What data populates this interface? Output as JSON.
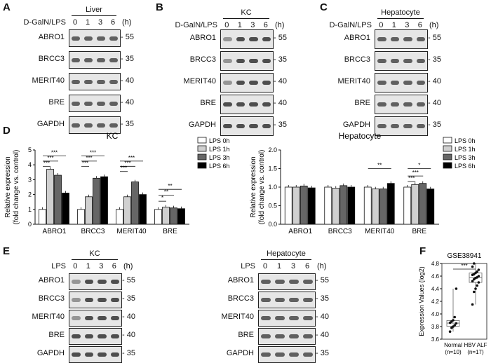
{
  "panel_labels": [
    "A",
    "B",
    "C",
    "D",
    "E",
    "F"
  ],
  "galn_label": "D-GalN/LPS",
  "lps_label": "LPS",
  "timepoints": [
    "0",
    "1",
    "3",
    "6"
  ],
  "hour_unit": "(h)",
  "proteins": [
    "ABRO1",
    "BRCC3",
    "MERIT40",
    "BRE",
    "GAPDH"
  ],
  "mw": [
    "55",
    "35",
    "40",
    "40",
    "35"
  ],
  "blots": {
    "A": {
      "title": "Liver"
    },
    "B": {
      "title": "KC"
    },
    "C": {
      "title": "Hepatocyte"
    },
    "E1": {
      "title": "KC"
    },
    "E2": {
      "title": "Hepatocyte"
    }
  },
  "chart_data": [
    {
      "type": "bar",
      "title": "KC",
      "ylabel": "Relative expression (fold change vs. control)",
      "ylim": [
        0,
        5
      ],
      "yticks": [
        0,
        1,
        2,
        3,
        4,
        5
      ],
      "categories": [
        "ABRO1",
        "BRCC3",
        "MERIT40",
        "BRE"
      ],
      "series": [
        {
          "name": "LPS 0h",
          "values": [
            1.0,
            1.0,
            1.0,
            1.0
          ],
          "color": "#ffffff"
        },
        {
          "name": "LPS 1h",
          "values": [
            3.7,
            1.85,
            1.85,
            1.15
          ],
          "color": "#d0d0d0"
        },
        {
          "name": "LPS 3h",
          "values": [
            3.3,
            3.1,
            2.85,
            1.1
          ],
          "color": "#666666"
        },
        {
          "name": "LPS 6h",
          "values": [
            2.1,
            3.2,
            2.0,
            1.05
          ],
          "color": "#000000"
        }
      ],
      "significance": [
        "***",
        "***",
        "***",
        "***",
        "***",
        "***",
        "***",
        "***",
        "***",
        "*",
        "**",
        "**"
      ]
    },
    {
      "type": "bar",
      "title": "Hepatocyte",
      "ylabel": "Relative expression (fold change vs. control)",
      "ylim": [
        0,
        2.0
      ],
      "yticks": [
        0.0,
        0.5,
        1.0,
        1.5,
        2.0
      ],
      "categories": [
        "ABRO1",
        "BRCC3",
        "MERIT40",
        "BRE"
      ],
      "series": [
        {
          "name": "LPS 0h",
          "values": [
            1.0,
            1.0,
            1.0,
            1.0
          ],
          "color": "#ffffff"
        },
        {
          "name": "LPS 1h",
          "values": [
            1.0,
            0.97,
            0.95,
            1.07
          ],
          "color": "#d0d0d0"
        },
        {
          "name": "LPS 3h",
          "values": [
            1.03,
            1.04,
            0.95,
            1.1
          ],
          "color": "#666666"
        },
        {
          "name": "LPS 6h",
          "values": [
            0.98,
            1.0,
            1.1,
            0.95
          ],
          "color": "#000000"
        }
      ],
      "significance": [
        "**",
        "*",
        "***",
        "***"
      ]
    },
    {
      "type": "scatter",
      "title": "GSE38941",
      "ylabel": "Expression Values (log2)",
      "ylim": [
        3.6,
        4.8
      ],
      "yticks": [
        3.6,
        3.8,
        4.0,
        4.2,
        4.4,
        4.6,
        4.8
      ],
      "categories": [
        "Normal\n(n=10)",
        "HBV ALF\n(n=17)"
      ],
      "significance": "***",
      "series": [
        {
          "name": "Normal",
          "values": [
            3.72,
            3.78,
            3.8,
            3.82,
            3.85,
            3.86,
            3.88,
            3.9,
            3.95,
            4.4
          ]
        },
        {
          "name": "HBV ALF",
          "values": [
            4.15,
            4.35,
            4.4,
            4.45,
            4.5,
            4.52,
            4.55,
            4.57,
            4.58,
            4.6,
            4.62,
            4.63,
            4.65,
            4.67,
            4.7,
            4.75,
            4.8
          ]
        }
      ]
    }
  ]
}
